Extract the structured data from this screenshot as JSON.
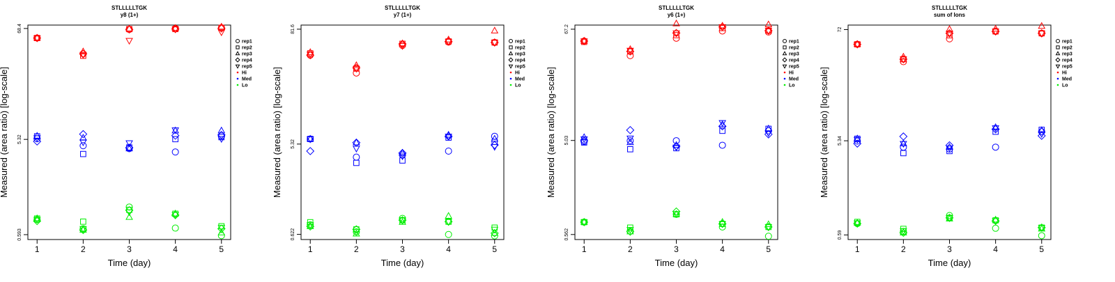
{
  "colors": {
    "Hi": "#ff0000",
    "Med": "#0000ff",
    "Lo": "#00ee00"
  },
  "legend": {
    "shapes": [
      {
        "label": "rep1",
        "shape": "circle"
      },
      {
        "label": "rep2",
        "shape": "square"
      },
      {
        "label": "rep3",
        "shape": "triangle-up"
      },
      {
        "label": "rep4",
        "shape": "diamond"
      },
      {
        "label": "rep5",
        "shape": "triangle-down"
      }
    ],
    "groups": [
      {
        "label": "Hi",
        "color": "#ff0000"
      },
      {
        "label": "Med",
        "color": "#0000ff"
      },
      {
        "label": "Lo",
        "color": "#00ee00"
      }
    ]
  },
  "chart_data": [
    {
      "type": "scatter",
      "title": "STLLLLLTGK",
      "subtitle": "y8 (1+)",
      "xlabel": "Time (day)",
      "ylabel": "Measured (area ratio) [log-scale]",
      "x": [
        1,
        2,
        3,
        4,
        5
      ],
      "yticks": [
        0.593,
        5.32,
        68.4
      ],
      "ylim": [
        0.53,
        74
      ],
      "series": {
        "Hi": [
          [
            54.9,
            54.9,
            54.9,
            54.9,
            54.9
          ],
          [
            38.2,
            36.5,
            40.1,
            38.2,
            37.5
          ],
          [
            67,
            67.4,
            68,
            67,
            51.8
          ],
          [
            68.4,
            67.5,
            68.9,
            67.6,
            67.5
          ],
          [
            69.5,
            69.5,
            71,
            68.4,
            63
          ]
        ],
        "Med": [
          [
            5.4,
            5.71,
            5.75,
            5.07,
            5.5
          ],
          [
            4.6,
            3.8,
            5.5,
            6.0,
            5.0
          ],
          [
            4.3,
            4.42,
            4.3,
            4.4,
            4.9
          ],
          [
            3.98,
            5.35,
            6.5,
            5.8,
            6.6
          ],
          [
            5.75,
            5.6,
            6.5,
            5.9,
            5.4
          ]
        ],
        "Lo": [
          [
            0.838,
            0.86,
            0.86,
            0.81,
            0.84
          ],
          [
            0.68,
            0.8,
            0.66,
            0.66,
            0.68
          ],
          [
            1.12,
            1.05,
            0.885,
            1.04,
            1.0
          ],
          [
            0.69,
            0.96,
            0.96,
            0.93,
            0.94
          ],
          [
            0.58,
            0.72,
            0.62,
            0.68,
            0.7
          ]
        ]
      }
    },
    {
      "type": "scatter",
      "title": "STLLLLLTGK",
      "subtitle": "y7 (1+)",
      "xlabel": "Time (day)",
      "ylabel": "Measured (area ratio) [log-scale]",
      "x": [
        1,
        2,
        3,
        4,
        5
      ],
      "yticks": [
        0.622,
        5.32,
        81.6
      ],
      "ylim": [
        0.55,
        90
      ],
      "series": {
        "Hi": [
          [
            44,
            46,
            47,
            44,
            45
          ],
          [
            28.8,
            32,
            34.5,
            32.5,
            32
          ],
          [
            55.5,
            57.7,
            58,
            57.5,
            55
          ],
          [
            60,
            61,
            63.5,
            61,
            61
          ],
          [
            59.5,
            59.5,
            78.5,
            59.5,
            59.5
          ]
        ],
        "Med": [
          [
            6.0,
            6.0,
            6.0,
            4.5,
            6.0
          ],
          [
            3.9,
            3.4,
            5.5,
            5.5,
            4.8
          ],
          [
            4.1,
            3.6,
            4.3,
            4.3,
            4.0
          ],
          [
            4.5,
            6.2,
            6.6,
            6.4,
            6.4
          ],
          [
            6.4,
            5.6,
            6.0,
            5.2,
            5.0
          ]
        ],
        "Lo": [
          [
            0.781,
            0.83,
            0.75,
            0.75,
            0.78
          ],
          [
            0.66,
            0.7,
            0.63,
            0.7,
            0.66
          ],
          [
            0.91,
            0.87,
            0.83,
            0.87,
            0.87
          ],
          [
            0.62,
            0.84,
            0.96,
            0.84,
            0.84
          ],
          [
            0.6,
            0.73,
            0.64,
            0.64,
            0.7
          ]
        ]
      }
    },
    {
      "type": "scatter",
      "title": "STLLLLLTGK",
      "subtitle": "y6 (1+)",
      "xlabel": "Time (day)",
      "ylabel": "Measured (area ratio) [log-scale]",
      "x": [
        1,
        2,
        3,
        4,
        5
      ],
      "yticks": [
        0.562,
        5.03,
        67.2
      ],
      "ylim": [
        0.5,
        74
      ],
      "series": {
        "Hi": [
          [
            51,
            50,
            51,
            51,
            51
          ],
          [
            36.3,
            40,
            42,
            40,
            41
          ],
          [
            54.5,
            58.5,
            76.4,
            61.5,
            61.5
          ],
          [
            64.5,
            69,
            72.5,
            71,
            71
          ],
          [
            63,
            65,
            74.8,
            65,
            65
          ]
        ],
        "Med": [
          [
            4.9,
            4.8,
            5.4,
            5.0,
            5.2
          ],
          [
            5.0,
            4.1,
            4.8,
            6.4,
            5.3
          ],
          [
            5.0,
            4.2,
            4.5,
            4.4,
            4.3
          ],
          [
            4.5,
            6.3,
            7.3,
            7.0,
            7.6
          ],
          [
            6.3,
            6.6,
            6.6,
            5.8,
            6.0
          ]
        ],
        "Lo": [
          [
            0.75,
            0.75,
            0.75,
            0.75,
            0.75
          ],
          [
            0.61,
            0.66,
            0.6,
            0.6,
            0.63
          ],
          [
            0.9,
            0.9,
            0.9,
            0.96,
            0.91
          ],
          [
            0.67,
            0.72,
            0.75,
            0.72,
            0.72
          ],
          [
            0.54,
            0.67,
            0.71,
            0.67,
            0.67
          ]
        ]
      }
    },
    {
      "type": "scatter",
      "title": "STLLLLLTGK",
      "subtitle": "sum of Ions",
      "xlabel": "Time (day)",
      "ylabel": "Measured (area ratio) [log-scale]",
      "x": [
        1,
        2,
        3,
        4,
        5
      ],
      "yticks": [
        0.59,
        5.34,
        72
      ],
      "ylim": [
        0.53,
        80
      ],
      "series": {
        "Hi": [
          [
            51,
            51,
            51,
            51,
            51
          ],
          [
            34,
            36,
            38,
            36,
            36
          ],
          [
            58,
            63,
            72.5,
            66,
            66
          ],
          [
            69,
            69,
            73,
            69,
            69
          ],
          [
            66,
            66,
            78,
            66,
            66
          ]
        ],
        "Med": [
          [
            5.3,
            5.6,
            5.6,
            5.0,
            5.5
          ],
          [
            4.6,
            4.0,
            5.0,
            5.9,
            5.0
          ],
          [
            4.4,
            4.2,
            4.6,
            4.8,
            4.5
          ],
          [
            4.6,
            6.6,
            7.3,
            7.0,
            7.2
          ],
          [
            6.6,
            6.9,
            6.8,
            6.0,
            6.3
          ]
        ],
        "Lo": [
          [
            0.77,
            0.8,
            0.78,
            0.77,
            0.78
          ],
          [
            0.64,
            0.68,
            0.62,
            0.62,
            0.65
          ],
          [
            0.93,
            0.88,
            0.86,
            0.88,
            0.88
          ],
          [
            0.69,
            0.83,
            0.84,
            0.82,
            0.82
          ],
          [
            0.58,
            0.7,
            0.68,
            0.7,
            0.7
          ]
        ]
      }
    }
  ]
}
